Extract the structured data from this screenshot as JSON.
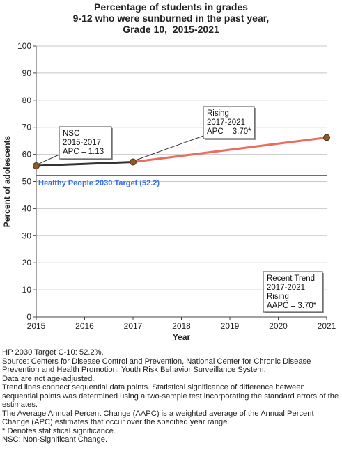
{
  "title_lines": [
    "Percentage of students in grades",
    "9-12 who were sunburned in the past year,",
    "Grade 10,  2015-2021"
  ],
  "chart_data": {
    "type": "line",
    "title": "Percentage of students in grades 9-12 who were sunburned in the past year, Grade 10, 2015-2021",
    "xlabel": "Year",
    "ylabel": "Percent of adolescents",
    "xlim": [
      2015,
      2021
    ],
    "ylim": [
      0,
      100
    ],
    "xticks": [
      2015,
      2016,
      2017,
      2018,
      2019,
      2020,
      2021
    ],
    "yticks": [
      0,
      10,
      20,
      30,
      40,
      50,
      60,
      70,
      80,
      90,
      100
    ],
    "grid": true,
    "points": [
      {
        "x": 2015,
        "y": 55.8
      },
      {
        "x": 2017,
        "y": 57.2
      },
      {
        "x": 2021,
        "y": 66.2
      }
    ],
    "trend_segments": [
      {
        "from": 2015,
        "to": 2017,
        "color": "#333333"
      },
      {
        "from": 2017,
        "to": 2021,
        "color": "#ee6b60"
      }
    ],
    "target": {
      "label": "Healthy People 2030 Target (52.2)",
      "value": 52.2,
      "color": "#3a6ee8"
    },
    "callouts": [
      {
        "lines": [
          "NSC",
          "2015-2017",
          "APC =  1.13"
        ]
      },
      {
        "lines": [
          "Rising",
          "2017-2021",
          "APC =  3.70*"
        ]
      },
      {
        "lines": [
          "Recent Trend",
          "2017-2021",
          "Rising",
          "AAPC =  3.70*"
        ]
      }
    ]
  },
  "colors": {
    "point_fill": "#8b5a2b",
    "point_stroke": "#4a2f12",
    "grid": "#c8c8c8",
    "axis": "#444444"
  },
  "notes": [
    "HP 2030 Target C-10: 52.2%.",
    "Source: Centers for Disease Control and Prevention, National Center for Chronic Disease Prevention and Health Promotion. Youth Risk Behavior Surveillance System.",
    "Data are not age-adjusted.",
    "Trend lines connect sequential data points. Statistical significance of difference between sequential points was determined using a two-sample test incorporating the standard errors of the estimates.",
    "The Average Annual Percent Change (AAPC) is a weighted average of the Annual Percent Change (APC) estimates that occur over the specified year range.",
    "* Denotes statistical significance.",
    "NSC: Non-Significant Change."
  ]
}
